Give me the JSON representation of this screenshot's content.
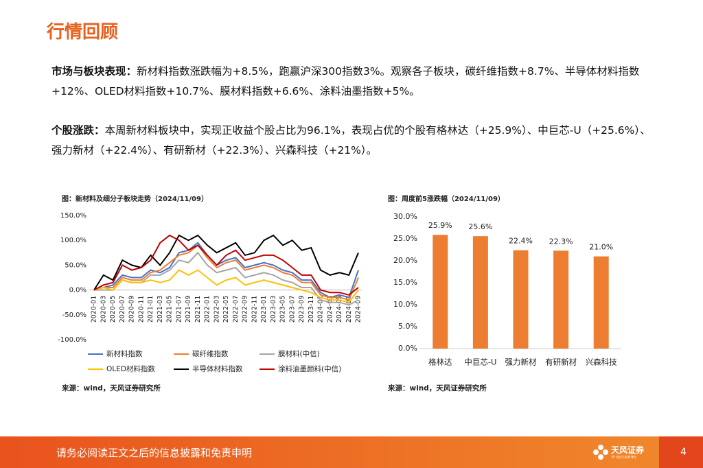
{
  "header": {
    "title": "行情回顾"
  },
  "paragraphs": [
    {
      "label": "市场与板块表现：",
      "text": "新材料指数涨跌幅为+8.5%，跑赢沪深300指数3%。观察各子板块，碳纤维指数+8.7%、半导体材料指数+12%、OLED材料指数+10.7%、膜材料指数+6.6%、涂料油墨指数+5%。"
    },
    {
      "label": "个股涨跌：",
      "text": "本周新材料板块中，实现正收益个股占比为96.1%，表现占优的个股有格林达（+25.9%）、中巨芯-U（+25.6%）、强力新材（+22.4%）、有研新材（+22.3%）、兴森科技（+21%）。"
    }
  ],
  "chart_data": [
    {
      "type": "line",
      "title": "图：新材料及细分子板块走势（2024/11/09）",
      "categories": [
        "2020-01",
        "2020-03",
        "2020-05",
        "2020-07",
        "2020-09",
        "2020-11",
        "2021-01",
        "2021-03",
        "2021-05",
        "2021-07",
        "2021-09",
        "2021-11",
        "2022-01",
        "2022-03",
        "2022-05",
        "2022-07",
        "2022-09",
        "2022-11",
        "2023-01",
        "2023-03",
        "2023-05",
        "2023-07",
        "2023-09",
        "2023-11",
        "2024-01",
        "2024-03",
        "2024-05",
        "2024-07",
        "2024-09"
      ],
      "series": [
        {
          "name": "新材料指数",
          "color": "#4472c4",
          "values": [
            0,
            5,
            10,
            30,
            25,
            25,
            40,
            35,
            45,
            75,
            80,
            95,
            70,
            50,
            60,
            65,
            45,
            50,
            55,
            50,
            40,
            35,
            20,
            20,
            -5,
            -15,
            -10,
            -15,
            40
          ]
        },
        {
          "name": "碳纤维指数",
          "color": "#ed7d31",
          "values": [
            0,
            5,
            5,
            25,
            20,
            20,
            35,
            40,
            55,
            70,
            75,
            90,
            65,
            45,
            55,
            60,
            40,
            45,
            50,
            45,
            35,
            30,
            15,
            15,
            -10,
            -15,
            -15,
            -20,
            25
          ]
        },
        {
          "name": "膜材料(中信)",
          "color": "#a5a5a5",
          "values": [
            0,
            0,
            0,
            20,
            15,
            15,
            30,
            30,
            40,
            60,
            55,
            75,
            50,
            35,
            40,
            45,
            25,
            30,
            35,
            30,
            20,
            15,
            5,
            5,
            -20,
            -25,
            -25,
            -30,
            -20
          ]
        },
        {
          "name": "OLED材料指数",
          "color": "#ffc000",
          "values": [
            0,
            5,
            0,
            20,
            15,
            15,
            20,
            15,
            20,
            40,
            30,
            40,
            25,
            10,
            20,
            25,
            10,
            15,
            20,
            15,
            10,
            5,
            0,
            -5,
            -15,
            -20,
            -20,
            -25,
            0
          ]
        },
        {
          "name": "半导体材料指数",
          "color": "#000000",
          "values": [
            0,
            30,
            20,
            60,
            50,
            45,
            70,
            50,
            75,
            110,
            100,
            110,
            90,
            75,
            85,
            95,
            70,
            75,
            100,
            110,
            90,
            100,
            80,
            85,
            40,
            30,
            35,
            30,
            75
          ]
        },
        {
          "name": "涂料油墨颜料(中信)",
          "color": "#c00000",
          "values": [
            0,
            10,
            15,
            50,
            40,
            45,
            60,
            95,
            110,
            100,
            80,
            90,
            70,
            50,
            70,
            80,
            60,
            65,
            70,
            70,
            60,
            45,
            30,
            30,
            0,
            -5,
            -5,
            -10,
            5
          ]
        }
      ],
      "ylim": [
        -100,
        150
      ],
      "yticks": [
        {
          "value": -100,
          "label": "-100.0%"
        },
        {
          "value": -50,
          "label": "-50.0%"
        },
        {
          "value": 0,
          "label": "0.0%"
        },
        {
          "value": 50,
          "label": "50.0%"
        },
        {
          "value": 100,
          "label": "100.0%"
        },
        {
          "value": 150,
          "label": "150.0%"
        }
      ],
      "grid": false,
      "legend": "bottom",
      "source": "来源：wind，天风证券研究所"
    },
    {
      "type": "bar",
      "title": "图：周度前5涨跌幅（2024/11/09）",
      "categories": [
        "格林达",
        "中巨芯-U",
        "强力新材",
        "有研新材",
        "兴森科技"
      ],
      "values": [
        25.9,
        25.6,
        22.4,
        22.3,
        21.0
      ],
      "value_labels": [
        "25.9%",
        "25.6%",
        "22.4%",
        "22.3%",
        "21.0%"
      ],
      "color": "#ed7d31",
      "ylim": [
        0,
        30
      ],
      "yticks": [
        {
          "value": 0,
          "label": "0.0%"
        },
        {
          "value": 5,
          "label": "5.0%"
        },
        {
          "value": 10,
          "label": "10.0%"
        },
        {
          "value": 15,
          "label": "15.0%"
        },
        {
          "value": 20,
          "label": "20.0%"
        },
        {
          "value": 25,
          "label": "25.0%"
        },
        {
          "value": 30,
          "label": "30.0%"
        }
      ],
      "grid": false,
      "source": "来源：wind，天风证券研究所"
    }
  ],
  "footer": {
    "disclaimer": "请务必阅读正文之后的信息披露和免责申明",
    "brand": "天风证券",
    "brand_en": "TF SECURITIES",
    "page": 4
  }
}
